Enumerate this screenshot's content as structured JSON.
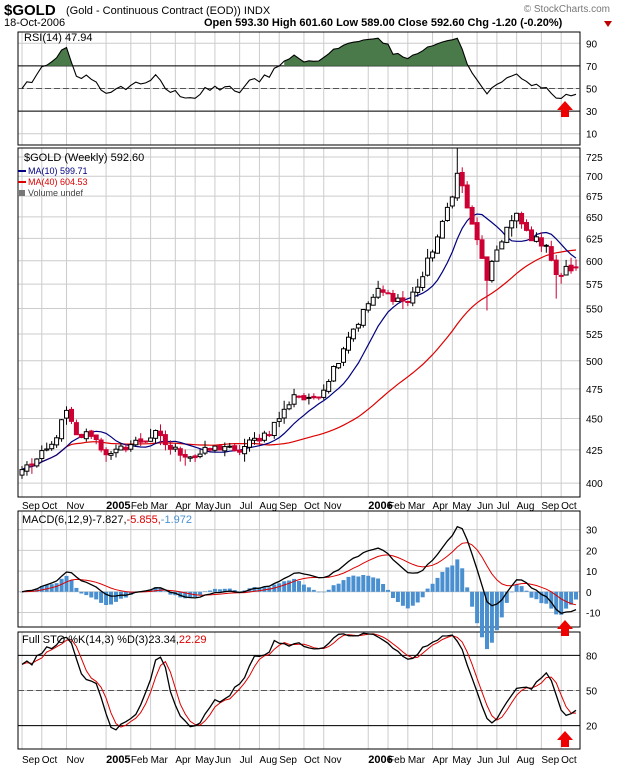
{
  "header": {
    "symbol": "$GOLD",
    "contract": "(Gold - Continuous Contract (EOD)) INDX",
    "date": "18-Oct-2006",
    "ohlc_line": "Open 593.30  High 601.60  Low 589.00  Close 592.60  Chg -1.20 (-0.20%)",
    "credit": "© StockCharts.com"
  },
  "colors": {
    "up": "#000000",
    "down": "#cc0033",
    "ma10": "#000080",
    "ma40": "#dd0000",
    "histogram": "#4a90d0",
    "rsi_fill": "#4a7a4a",
    "arrow": "#ee0000",
    "grid": "#cccccc"
  },
  "x_axis": {
    "labels": [
      "Sep",
      "Oct",
      "Nov",
      "2005",
      "Feb",
      "Mar",
      "Apr",
      "May",
      "Jun",
      "Jul",
      "Aug",
      "Sep",
      "Oct",
      "Nov",
      "2006",
      "Feb",
      "Mar",
      "Apr",
      "May",
      "Jun",
      "Jul",
      "Aug",
      "Sep",
      "Oct"
    ],
    "bold": [
      "2005",
      "2006"
    ],
    "label_weeks": [
      0,
      4,
      9,
      17,
      22,
      26,
      31,
      35,
      39,
      44,
      48,
      52,
      57,
      61,
      70,
      74,
      78,
      83,
      87,
      92,
      96,
      100,
      105,
      109
    ]
  },
  "panels": {
    "rsi": {
      "legend": "RSI(14) 47.94",
      "ticks": [
        10,
        30,
        50,
        70,
        90
      ],
      "range": [
        0,
        100
      ],
      "levels": [
        70,
        30
      ],
      "mid": 50
    },
    "price": {
      "legend_title": "$GOLD (Weekly) 592.60",
      "legend_ma10": "MA(10) 599.71",
      "legend_ma40": "MA(40) 604.53",
      "legend_volume": "Volume undef",
      "ticks": [
        400,
        425,
        450,
        475,
        500,
        525,
        550,
        575,
        600,
        625,
        650,
        675,
        700,
        725
      ],
      "range": [
        390,
        737
      ],
      "scale": "log"
    },
    "macd": {
      "legend_label": "MACD(6,12,9)",
      "legend_v1": "-7.827",
      "legend_v2": "-5.855",
      "legend_v3": "-1.972",
      "ticks": [
        -10,
        0,
        10,
        20,
        30
      ],
      "range": [
        -17,
        39
      ]
    },
    "sto": {
      "legend_label": "Full STO %K(14,3) %D(3)",
      "legend_v1": "23.34",
      "legend_v2": "22.29",
      "ticks": [
        20,
        50,
        80
      ],
      "range": [
        0,
        100
      ],
      "levels": [
        80,
        20
      ],
      "mid": 50
    }
  },
  "chart_data": {
    "type": "candlestick",
    "title": "$GOLD (Weekly)",
    "period": "Sep 2004 - 18 Oct 2006",
    "close_key": [
      [
        0,
        410
      ],
      [
        3,
        417
      ],
      [
        6,
        428
      ],
      [
        9,
        455
      ],
      [
        11,
        435
      ],
      [
        14,
        438
      ],
      [
        16,
        427
      ],
      [
        18,
        420
      ],
      [
        21,
        428
      ],
      [
        24,
        432
      ],
      [
        27,
        437
      ],
      [
        30,
        426
      ],
      [
        33,
        422
      ],
      [
        35,
        420
      ],
      [
        38,
        425
      ],
      [
        41,
        428
      ],
      [
        43,
        422
      ],
      [
        46,
        430
      ],
      [
        50,
        440
      ],
      [
        53,
        456
      ],
      [
        55,
        471
      ],
      [
        58,
        464
      ],
      [
        61,
        476
      ],
      [
        64,
        502
      ],
      [
        66,
        524
      ],
      [
        68,
        537
      ],
      [
        70,
        555
      ],
      [
        72,
        567
      ],
      [
        75,
        562
      ],
      [
        78,
        556
      ],
      [
        81,
        583
      ],
      [
        83,
        613
      ],
      [
        85,
        640
      ],
      [
        87,
        680
      ],
      [
        88,
        702
      ],
      [
        89,
        686
      ],
      [
        91,
        638
      ],
      [
        93,
        605
      ],
      [
        94,
        576
      ],
      [
        96,
        612
      ],
      [
        98,
        637
      ],
      [
        100,
        650
      ],
      [
        102,
        632
      ],
      [
        104,
        622
      ],
      [
        106,
        620
      ],
      [
        108,
        582
      ],
      [
        110,
        590
      ],
      [
        112,
        594
      ]
    ],
    "last_candle": {
      "open": 593.3,
      "high": 601.6,
      "low": 589.0,
      "close": 592.6,
      "chg": -1.2,
      "chg_pct": -0.2
    },
    "ma10_last": 599.71,
    "ma40_last": 604.53,
    "rsi_last": 47.94,
    "macd_last": [
      -7.827,
      -5.855,
      -1.972
    ],
    "sto_last": [
      23.34,
      22.29
    ]
  }
}
